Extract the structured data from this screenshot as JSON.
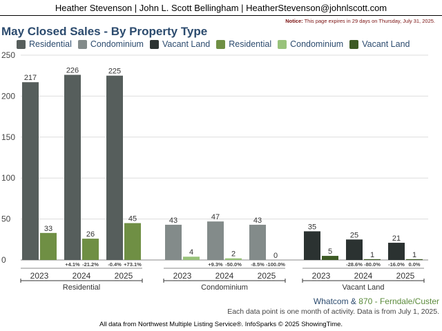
{
  "header": {
    "text": "Heather Stevenson | John L. Scott Bellingham | HeatherStevenson@johnlscott.com"
  },
  "notice": {
    "label": "Notice:",
    "text": "This page expires in 29 days on Thursday, July 31, 2025."
  },
  "footer": {
    "area_prefix": "Whatcom",
    "area_amp": " & ",
    "area_name": "870 - Ferndale/Custer",
    "note": "Each data point is one month of activity. Data is from July 1, 2025.",
    "credit": "All data from Northwest Multiple Listing Service®. InfoSparks © 2025 ShowingTime."
  },
  "colors": {
    "res_current": "#565e5c",
    "res_prior": "#6f8f44",
    "condo_current": "#838b8a",
    "condo_prior": "#98c27a",
    "land_current": "#2b3231",
    "land_prior": "#3d5a24"
  },
  "chart_data": {
    "type": "bar",
    "title": "May Closed Sales - By Property Type",
    "ylim": [
      0,
      250
    ],
    "yticks": [
      0,
      50,
      100,
      150,
      200,
      250
    ],
    "legend": [
      {
        "name": "Residential",
        "color": "#565e5c"
      },
      {
        "name": "Condominium",
        "color": "#838b8a"
      },
      {
        "name": "Vacant Land",
        "color": "#2b3231"
      },
      {
        "name": "Residential",
        "color": "#6f8f44"
      },
      {
        "name": "Condominium",
        "color": "#98c27a"
      },
      {
        "name": "Vacant Land",
        "color": "#3d5a24"
      }
    ],
    "groups": [
      {
        "name": "Residential",
        "years": [
          "2023",
          "2024",
          "2025"
        ],
        "current": [
          217,
          226,
          225
        ],
        "prior": [
          33,
          26,
          45
        ],
        "current_color": "#565e5c",
        "prior_color": "#6f8f44",
        "changes": [
          null,
          [
            "+4.1%",
            "-21.2%"
          ],
          [
            "-0.4%",
            "+73.1%"
          ]
        ]
      },
      {
        "name": "Condominium",
        "years": [
          "2023",
          "2024",
          "2025"
        ],
        "current": [
          43,
          47,
          43
        ],
        "prior": [
          4,
          2,
          0
        ],
        "current_color": "#838b8a",
        "prior_color": "#98c27a",
        "changes": [
          null,
          [
            "+9.3%",
            "-50.0%"
          ],
          [
            "-8.5%",
            "-100.0%"
          ]
        ]
      },
      {
        "name": "Vacant Land",
        "years": [
          "2023",
          "2024",
          "2025"
        ],
        "current": [
          35,
          25,
          21
        ],
        "prior": [
          5,
          1,
          1
        ],
        "current_color": "#2b3231",
        "prior_color": "#3d5a24",
        "changes": [
          null,
          [
            "-28.6%",
            "-80.0%"
          ],
          [
            "-16.0%",
            "0.0%"
          ]
        ]
      }
    ]
  }
}
